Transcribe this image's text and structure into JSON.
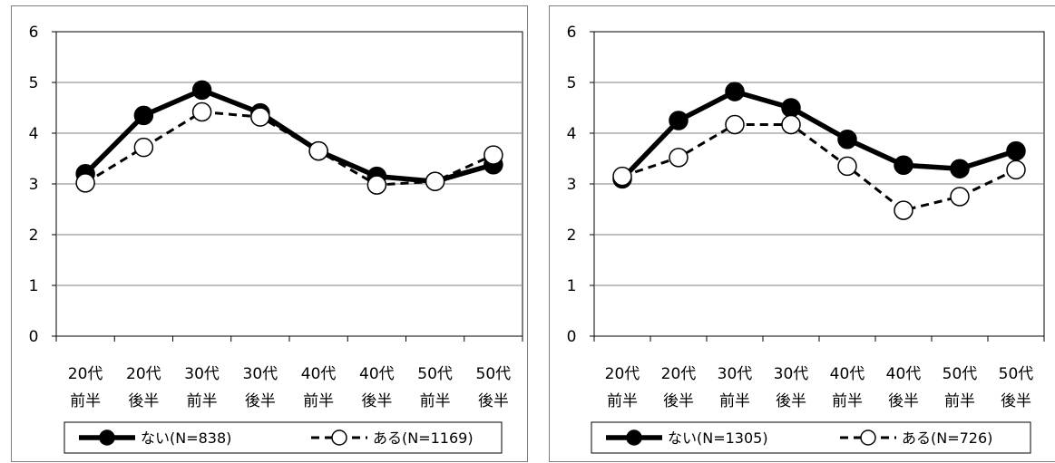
{
  "chart_data": [
    {
      "type": "line",
      "categories": [
        [
          "20代",
          "前半"
        ],
        [
          "20代",
          "後半"
        ],
        [
          "30代",
          "前半"
        ],
        [
          "30代",
          "後半"
        ],
        [
          "40代",
          "前半"
        ],
        [
          "40代",
          "後半"
        ],
        [
          "50代",
          "前半"
        ],
        [
          "50代",
          "後半"
        ]
      ],
      "ylim": [
        0,
        6
      ],
      "yticks": [
        0,
        1,
        2,
        3,
        4,
        5,
        6
      ],
      "grid": true,
      "legend_position": "bottom",
      "series": [
        {
          "name": "ない(N=838)",
          "style": "solid-filled",
          "color": "#000000",
          "values": [
            3.2,
            4.35,
            4.85,
            4.4,
            3.65,
            3.15,
            3.05,
            3.38
          ]
        },
        {
          "name": "ある(N=1169)",
          "style": "dashed-open",
          "color": "#000000",
          "values": [
            3.02,
            3.72,
            4.42,
            4.32,
            3.65,
            2.98,
            3.05,
            3.57
          ]
        }
      ]
    },
    {
      "type": "line",
      "categories": [
        [
          "20代",
          "前半"
        ],
        [
          "20代",
          "後半"
        ],
        [
          "30代",
          "前半"
        ],
        [
          "30代",
          "後半"
        ],
        [
          "40代",
          "前半"
        ],
        [
          "40代",
          "後半"
        ],
        [
          "50代",
          "前半"
        ],
        [
          "50代",
          "後半"
        ]
      ],
      "ylim": [
        0,
        6
      ],
      "yticks": [
        0,
        1,
        2,
        3,
        4,
        5,
        6
      ],
      "grid": true,
      "legend_position": "bottom",
      "series": [
        {
          "name": "ない(N=1305)",
          "style": "solid-filled",
          "color": "#000000",
          "values": [
            3.1,
            4.25,
            4.82,
            4.5,
            3.88,
            3.37,
            3.3,
            3.65
          ]
        },
        {
          "name": "ある(N=726)",
          "style": "dashed-open",
          "color": "#000000",
          "values": [
            3.15,
            3.52,
            4.17,
            4.17,
            3.35,
            2.48,
            2.75,
            3.28
          ]
        }
      ]
    }
  ]
}
